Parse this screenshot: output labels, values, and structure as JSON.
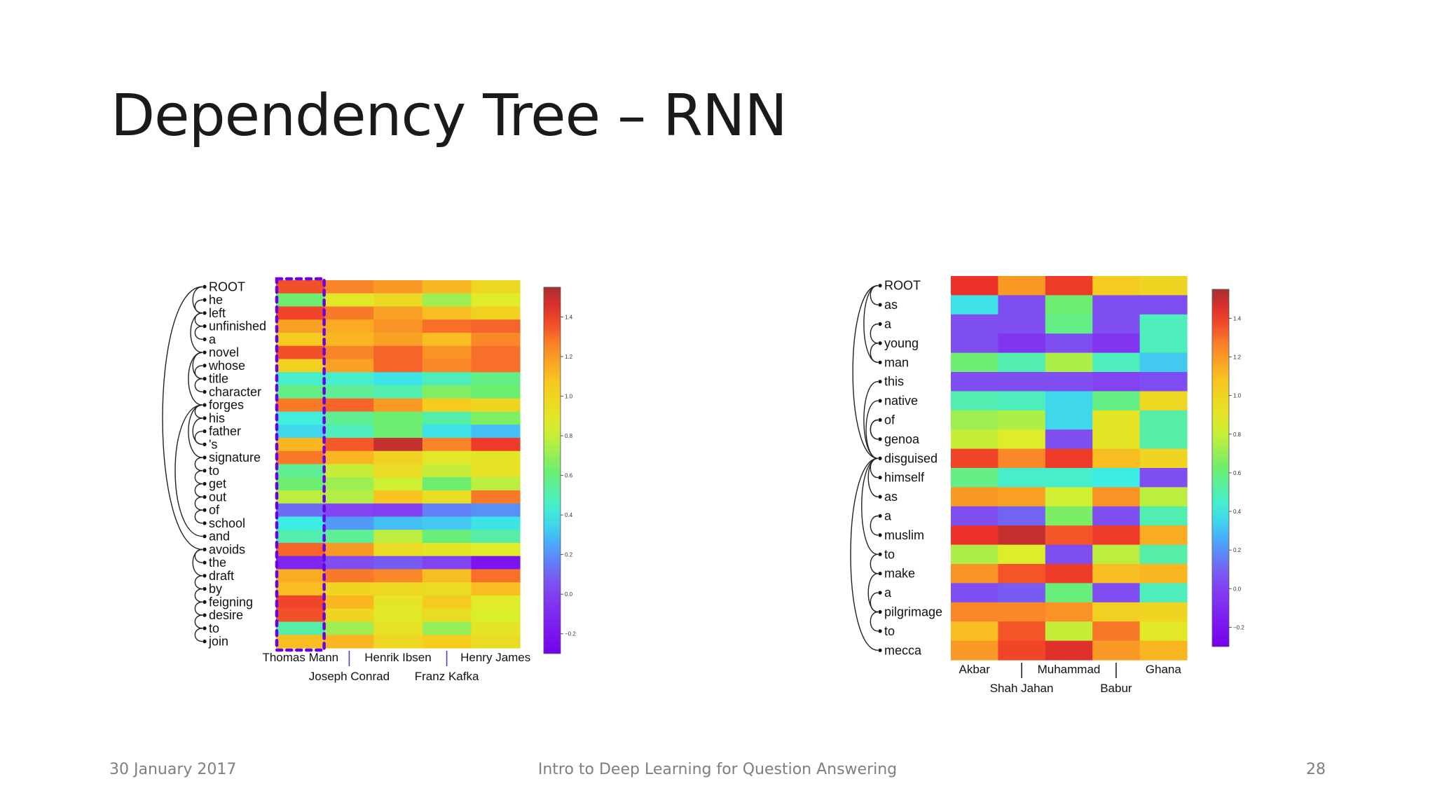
{
  "slide": {
    "title": "Dependency Tree – RNN",
    "footer_date": "30 January 2017",
    "footer_center": "Intro to Deep Learning for Question Answering",
    "page_number": "28"
  },
  "chart_data": [
    {
      "type": "heatmap",
      "rows": [
        "ROOT",
        "he",
        "left",
        "unfinished",
        "a",
        "novel",
        "whose",
        "title",
        "character",
        "forges",
        "his",
        "father",
        "'s",
        "signature",
        "to",
        "get",
        "out",
        "of",
        "school",
        "and",
        "avoids",
        "the",
        "draft",
        "by",
        "feigning",
        "desire",
        "to",
        "join"
      ],
      "columns": [
        "Thomas Mann",
        "Joseph Conrad",
        "Henrik Ibsen",
        "Franz Kafka",
        "Henry James"
      ],
      "values": [
        [
          1.36,
          1.26,
          1.2,
          1.12,
          0.98
        ],
        [
          0.62,
          0.88,
          0.97,
          0.72,
          0.86
        ],
        [
          1.38,
          1.28,
          1.18,
          1.1,
          1.02
        ],
        [
          1.18,
          1.15,
          1.22,
          1.3,
          1.32
        ],
        [
          1.05,
          1.12,
          1.18,
          1.1,
          1.25
        ],
        [
          1.36,
          1.26,
          1.32,
          1.22,
          1.3
        ],
        [
          1.02,
          1.18,
          1.32,
          1.25,
          1.3
        ],
        [
          0.45,
          0.45,
          0.38,
          0.48,
          0.58
        ],
        [
          0.58,
          0.55,
          0.5,
          0.66,
          0.62
        ],
        [
          1.28,
          1.32,
          1.2,
          1.05,
          1.0
        ],
        [
          0.42,
          0.56,
          0.62,
          0.52,
          0.66
        ],
        [
          0.35,
          0.48,
          0.62,
          0.38,
          0.3
        ],
        [
          1.12,
          1.34,
          1.5,
          1.26,
          1.4
        ],
        [
          1.28,
          1.12,
          1.02,
          0.88,
          0.9
        ],
        [
          0.55,
          0.8,
          0.95,
          0.8,
          0.92
        ],
        [
          0.62,
          0.72,
          0.82,
          0.62,
          0.78
        ],
        [
          0.78,
          0.76,
          1.08,
          0.94,
          1.28
        ],
        [
          0.12,
          0.02,
          0.0,
          0.16,
          0.2
        ],
        [
          0.4,
          0.22,
          0.3,
          0.32,
          0.38
        ],
        [
          0.5,
          0.55,
          0.78,
          0.6,
          0.52
        ],
        [
          1.32,
          1.2,
          0.95,
          0.9,
          0.86
        ],
        [
          -0.12,
          0.05,
          0.08,
          0.02,
          -0.2
        ],
        [
          1.15,
          1.28,
          1.25,
          1.1,
          1.3
        ],
        [
          1.1,
          1.0,
          0.98,
          0.95,
          1.1
        ],
        [
          1.38,
          1.12,
          0.9,
          1.05,
          0.86
        ],
        [
          1.36,
          1.0,
          0.88,
          0.95,
          0.84
        ],
        [
          0.52,
          0.72,
          0.92,
          0.7,
          0.9
        ],
        [
          1.1,
          1.12,
          0.98,
          1.04,
          0.95
        ]
      ],
      "colorbar_ticks": [
        "1.4",
        "1.2",
        "1.0",
        "0.8",
        "0.6",
        "0.4",
        "0.2",
        "0.0",
        "−0.2"
      ],
      "vmin": -0.3,
      "vmax": 1.55,
      "colormap": "rainbow",
      "highlighted_column": "Thomas Mann"
    },
    {
      "type": "heatmap",
      "rows": [
        "ROOT",
        "as",
        "a",
        "young",
        "man",
        "this",
        "native",
        "of",
        "genoa",
        "disguised",
        "himself",
        "as",
        "a",
        "muslim",
        "to",
        "make",
        "a",
        "pilgrimage",
        "to",
        "mecca"
      ],
      "columns": [
        "Akbar",
        "Shah Jahan",
        "Muhammad",
        "Babur",
        "Ghana"
      ],
      "values": [
        [
          1.42,
          1.2,
          1.4,
          1.05,
          1.0
        ],
        [
          0.38,
          0.05,
          0.62,
          0.05,
          0.05
        ],
        [
          0.05,
          0.05,
          0.58,
          0.05,
          0.48
        ],
        [
          0.05,
          -0.05,
          0.05,
          -0.05,
          0.48
        ],
        [
          0.62,
          0.5,
          0.75,
          0.48,
          0.32
        ],
        [
          0.05,
          0.05,
          0.05,
          0.02,
          0.05
        ],
        [
          0.5,
          0.48,
          0.35,
          0.58,
          0.98
        ],
        [
          0.72,
          0.75,
          0.35,
          0.9,
          0.52
        ],
        [
          0.8,
          0.85,
          0.05,
          0.9,
          0.52
        ],
        [
          1.38,
          1.25,
          1.4,
          1.1,
          1.0
        ],
        [
          0.58,
          0.45,
          0.45,
          0.4,
          0.05
        ],
        [
          1.2,
          1.18,
          0.82,
          1.22,
          0.78
        ],
        [
          0.05,
          0.1,
          0.65,
          0.05,
          0.5
        ],
        [
          1.42,
          1.5,
          1.35,
          1.4,
          1.15
        ],
        [
          0.75,
          0.85,
          0.05,
          0.78,
          0.52
        ],
        [
          1.22,
          1.35,
          1.4,
          1.1,
          1.12
        ],
        [
          0.05,
          0.08,
          0.6,
          0.05,
          0.48
        ],
        [
          1.25,
          1.25,
          1.22,
          1.02,
          1.0
        ],
        [
          1.1,
          1.35,
          0.8,
          1.28,
          0.88
        ],
        [
          1.2,
          1.38,
          1.45,
          1.2,
          1.12
        ]
      ],
      "colorbar_ticks": [
        "1.4",
        "1.2",
        "1.0",
        "0.8",
        "0.6",
        "0.4",
        "0.2",
        "0.0",
        "−0.2"
      ],
      "vmin": -0.3,
      "vmax": 1.55,
      "colormap": "rainbow"
    }
  ]
}
